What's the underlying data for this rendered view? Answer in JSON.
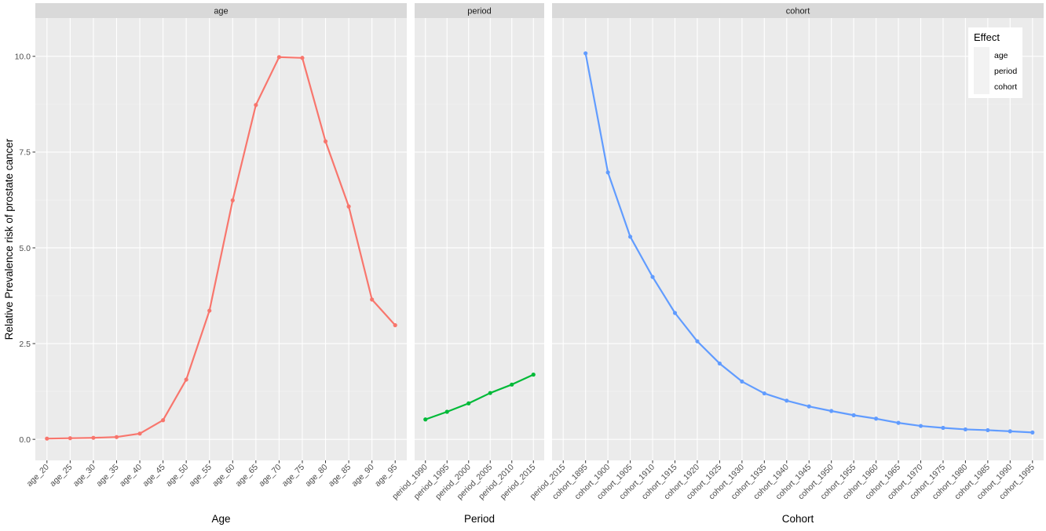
{
  "chart_data": {
    "type": "line",
    "layout": "faceted",
    "ylabel": "Relative Prevalence risk of prostate cancer",
    "ylim": [
      -0.55,
      11.0
    ],
    "yticks": [
      0.0,
      2.5,
      5.0,
      7.5,
      10.0
    ],
    "ytick_labels": [
      "0.0",
      "2.5",
      "5.0",
      "7.5",
      "10.0"
    ],
    "grid": true,
    "legend": {
      "title": "Effect",
      "position": "top-right",
      "entries": [
        "age",
        "period",
        "cohort"
      ]
    },
    "facets": [
      {
        "strip": "age",
        "xlabel": "Age",
        "color": "#F8766D",
        "categories": [
          "age_20",
          "age_25",
          "age_30",
          "age_35",
          "age_40",
          "age_45",
          "age_50",
          "age_55",
          "age_60",
          "age_65",
          "age_70",
          "age_75",
          "age_80",
          "age_85",
          "age_90",
          "age_95"
        ],
        "values": [
          0.02,
          0.03,
          0.04,
          0.06,
          0.15,
          0.5,
          1.56,
          3.36,
          6.24,
          8.73,
          9.98,
          9.96,
          7.78,
          6.08,
          3.65,
          2.98
        ]
      },
      {
        "strip": "period",
        "xlabel": "Period",
        "color": "#00BA38",
        "categories": [
          "period_1990",
          "period_1995",
          "period_2000",
          "period_2005",
          "period_2010",
          "period_2015"
        ],
        "values": [
          0.52,
          0.72,
          0.94,
          1.21,
          1.43,
          1.69
        ]
      },
      {
        "strip": "cohort",
        "xlabel": "Cohort",
        "color": "#619CFF",
        "categories": [
          "period_2015",
          "cohort_1895",
          "cohort_1900",
          "cohort_1905",
          "cohort_1910",
          "cohort_1915",
          "cohort_1920",
          "cohort_1925",
          "cohort_1930",
          "cohort_1935",
          "cohort_1940",
          "cohort_1945",
          "cohort_1950",
          "cohort_1955",
          "cohort_1960",
          "cohort_1965",
          "cohort_1970",
          "cohort_1975",
          "cohort_1980",
          "cohort_1985",
          "cohort_1990",
          "cohort_1995"
        ],
        "values": [
          null,
          10.08,
          6.97,
          5.29,
          4.24,
          3.3,
          2.56,
          1.98,
          1.51,
          1.2,
          1.01,
          0.86,
          0.74,
          0.63,
          0.54,
          0.43,
          0.35,
          0.3,
          0.26,
          0.24,
          0.21,
          0.18
        ]
      }
    ]
  }
}
